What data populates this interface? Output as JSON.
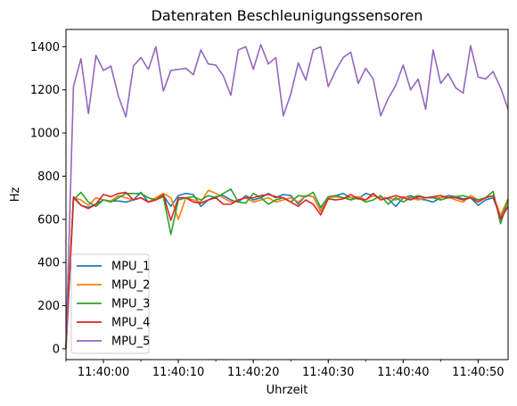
{
  "chart_data": {
    "type": "line",
    "title": "Datenraten Beschleunigungssensoren",
    "xlabel": "Uhrzeit",
    "ylabel": "Hz",
    "xlim": [
      "11:39:55",
      "11:40:54"
    ],
    "ylim": [
      -50,
      1480
    ],
    "x_ticks": [
      "11:40:00",
      "11:40:10",
      "11:40:20",
      "11:40:30",
      "11:40:40",
      "11:40:50"
    ],
    "y_ticks": [
      0,
      200,
      400,
      600,
      800,
      1000,
      1200,
      1400
    ],
    "legend_position": "lower-left",
    "grid": false,
    "x": [
      "11:39:55",
      "11:39:56",
      "11:39:57",
      "11:39:58",
      "11:39:59",
      "11:40:00",
      "11:40:01",
      "11:40:02",
      "11:40:03",
      "11:40:04",
      "11:40:05",
      "11:40:06",
      "11:40:07",
      "11:40:08",
      "11:40:09",
      "11:40:10",
      "11:40:11",
      "11:40:12",
      "11:40:13",
      "11:40:14",
      "11:40:15",
      "11:40:16",
      "11:40:17",
      "11:40:18",
      "11:40:19",
      "11:40:20",
      "11:40:21",
      "11:40:22",
      "11:40:23",
      "11:40:24",
      "11:40:25",
      "11:40:26",
      "11:40:27",
      "11:40:28",
      "11:40:29",
      "11:40:30",
      "11:40:31",
      "11:40:32",
      "11:40:33",
      "11:40:34",
      "11:40:35",
      "11:40:36",
      "11:40:37",
      "11:40:38",
      "11:40:39",
      "11:40:40",
      "11:40:41",
      "11:40:42",
      "11:40:43",
      "11:40:44",
      "11:40:45",
      "11:40:46",
      "11:40:47",
      "11:40:48",
      "11:40:49",
      "11:40:50",
      "11:40:51",
      "11:40:52",
      "11:40:53",
      "11:40:54"
    ],
    "series": [
      {
        "name": "MPU_1",
        "color": "#1f77b4",
        "values": [
          10,
          700,
          665,
          655,
          670,
          690,
          685,
          685,
          680,
          690,
          725,
          680,
          700,
          710,
          660,
          710,
          720,
          715,
          660,
          690,
          705,
          710,
          690,
          680,
          710,
          690,
          700,
          720,
          700,
          715,
          710,
          670,
          710,
          705,
          640,
          700,
          710,
          720,
          700,
          695,
          720,
          710,
          700,
          695,
          660,
          700,
          710,
          695,
          690,
          680,
          700,
          710,
          705,
          695,
          700,
          665,
          690,
          700,
          610,
          695
        ]
      },
      {
        "name": "MPU_2",
        "color": "#ff7f0e",
        "values": [
          5,
          700,
          690,
          665,
          700,
          690,
          685,
          710,
          700,
          690,
          700,
          680,
          700,
          720,
          700,
          600,
          700,
          690,
          680,
          735,
          720,
          700,
          680,
          690,
          700,
          680,
          690,
          700,
          680,
          690,
          700,
          680,
          710,
          705,
          635,
          700,
          705,
          700,
          700,
          705,
          690,
          710,
          700,
          700,
          690,
          705,
          700,
          690,
          700,
          700,
          700,
          705,
          690,
          680,
          710,
          690,
          700,
          710,
          620,
          695
        ]
      },
      {
        "name": "MPU_3",
        "color": "#2ca02c",
        "values": [
          0,
          690,
          725,
          680,
          660,
          690,
          680,
          700,
          720,
          720,
          720,
          700,
          690,
          705,
          530,
          690,
          700,
          705,
          690,
          710,
          700,
          720,
          740,
          680,
          675,
          720,
          700,
          670,
          690,
          700,
          680,
          710,
          705,
          725,
          655,
          705,
          710,
          700,
          690,
          700,
          680,
          690,
          710,
          670,
          700,
          680,
          700,
          710,
          700,
          700,
          690,
          700,
          705,
          710,
          700,
          690,
          700,
          730,
          580,
          690
        ]
      },
      {
        "name": "MPU_4",
        "color": "#d62728",
        "values": [
          5,
          705,
          665,
          650,
          670,
          715,
          705,
          720,
          725,
          690,
          700,
          680,
          690,
          715,
          595,
          700,
          700,
          680,
          675,
          690,
          700,
          670,
          670,
          690,
          700,
          700,
          710,
          715,
          705,
          700,
          680,
          660,
          690,
          670,
          620,
          695,
          690,
          695,
          715,
          695,
          690,
          720,
          690,
          700,
          710,
          700,
          690,
          705,
          700,
          705,
          710,
          700,
          700,
          690,
          700,
          680,
          700,
          710,
          600,
          660
        ]
      },
      {
        "name": "MPU_5",
        "color": "#9467bd",
        "values": [
          15,
          1215,
          1345,
          1090,
          1360,
          1290,
          1310,
          1170,
          1075,
          1310,
          1350,
          1295,
          1400,
          1195,
          1290,
          1295,
          1300,
          1270,
          1385,
          1320,
          1315,
          1265,
          1175,
          1385,
          1400,
          1295,
          1410,
          1320,
          1350,
          1080,
          1180,
          1325,
          1245,
          1385,
          1400,
          1215,
          1290,
          1350,
          1375,
          1230,
          1300,
          1250,
          1080,
          1160,
          1220,
          1315,
          1200,
          1250,
          1110,
          1385,
          1230,
          1275,
          1210,
          1185,
          1405,
          1260,
          1250,
          1285,
          1210,
          1110
        ]
      }
    ]
  }
}
